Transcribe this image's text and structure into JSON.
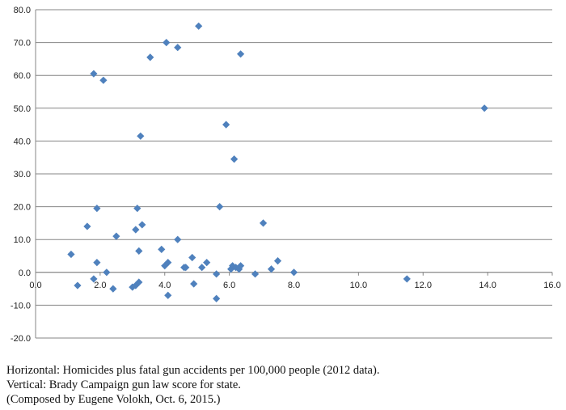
{
  "chart_data": {
    "type": "scatter",
    "marker_color": "#4F81BD",
    "grid": "horizontal",
    "legend": "none",
    "xlim": [
      0,
      16
    ],
    "ylim": [
      -20,
      80
    ],
    "x_ticks": [
      "0.0",
      "2.0",
      "4.0",
      "6.0",
      "8.0",
      "10.0",
      "12.0",
      "14.0",
      "16.0"
    ],
    "y_ticks": [
      "80.0",
      "70.0",
      "60.0",
      "50.0",
      "40.0",
      "30.0",
      "20.0",
      "10.0",
      "0.0",
      "-10.0",
      "-20.0"
    ],
    "points": [
      {
        "x": 1.1,
        "y": 5.5
      },
      {
        "x": 1.3,
        "y": -4
      },
      {
        "x": 1.6,
        "y": 14
      },
      {
        "x": 1.8,
        "y": 60.5
      },
      {
        "x": 1.8,
        "y": -2
      },
      {
        "x": 1.9,
        "y": 19.5
      },
      {
        "x": 1.9,
        "y": 3
      },
      {
        "x": 2.1,
        "y": 58.5
      },
      {
        "x": 2.2,
        "y": 0
      },
      {
        "x": 2.4,
        "y": -5
      },
      {
        "x": 2.5,
        "y": 11
      },
      {
        "x": 3.0,
        "y": -4.5
      },
      {
        "x": 3.1,
        "y": 13
      },
      {
        "x": 3.1,
        "y": -4
      },
      {
        "x": 3.15,
        "y": 19.5
      },
      {
        "x": 3.2,
        "y": 6.5
      },
      {
        "x": 3.2,
        "y": -3
      },
      {
        "x": 3.25,
        "y": 41.5
      },
      {
        "x": 3.3,
        "y": 14.5
      },
      {
        "x": 3.55,
        "y": 65.5
      },
      {
        "x": 3.9,
        "y": 7
      },
      {
        "x": 4.0,
        "y": 2
      },
      {
        "x": 4.05,
        "y": 70
      },
      {
        "x": 4.1,
        "y": 3
      },
      {
        "x": 4.1,
        "y": -7
      },
      {
        "x": 4.4,
        "y": 68.5
      },
      {
        "x": 4.4,
        "y": 10
      },
      {
        "x": 4.6,
        "y": 1.5
      },
      {
        "x": 4.65,
        "y": 1.5
      },
      {
        "x": 4.85,
        "y": 4.5
      },
      {
        "x": 4.9,
        "y": -3.5
      },
      {
        "x": 5.05,
        "y": 75
      },
      {
        "x": 5.15,
        "y": 1.5
      },
      {
        "x": 5.3,
        "y": 3
      },
      {
        "x": 5.6,
        "y": -0.5
      },
      {
        "x": 5.6,
        "y": -8
      },
      {
        "x": 5.7,
        "y": 20
      },
      {
        "x": 5.9,
        "y": 45
      },
      {
        "x": 6.05,
        "y": 1
      },
      {
        "x": 6.1,
        "y": 2
      },
      {
        "x": 6.15,
        "y": 34.5
      },
      {
        "x": 6.2,
        "y": 1.5
      },
      {
        "x": 6.3,
        "y": 1
      },
      {
        "x": 6.35,
        "y": 2
      },
      {
        "x": 6.35,
        "y": 66.5
      },
      {
        "x": 6.8,
        "y": -0.5
      },
      {
        "x": 7.05,
        "y": 15
      },
      {
        "x": 7.3,
        "y": 1
      },
      {
        "x": 7.5,
        "y": 3.5
      },
      {
        "x": 8.0,
        "y": 0
      },
      {
        "x": 11.5,
        "y": -2
      },
      {
        "x": 13.9,
        "y": 50
      }
    ]
  },
  "caption": {
    "line1": "Horizontal: Homicides plus fatal gun accidents per 100,000 people (2012 data).",
    "line2": "Vertical: Brady Campaign gun law score for state.",
    "line3": "(Composed by Eugene Volokh, Oct. 6, 2015.)"
  }
}
